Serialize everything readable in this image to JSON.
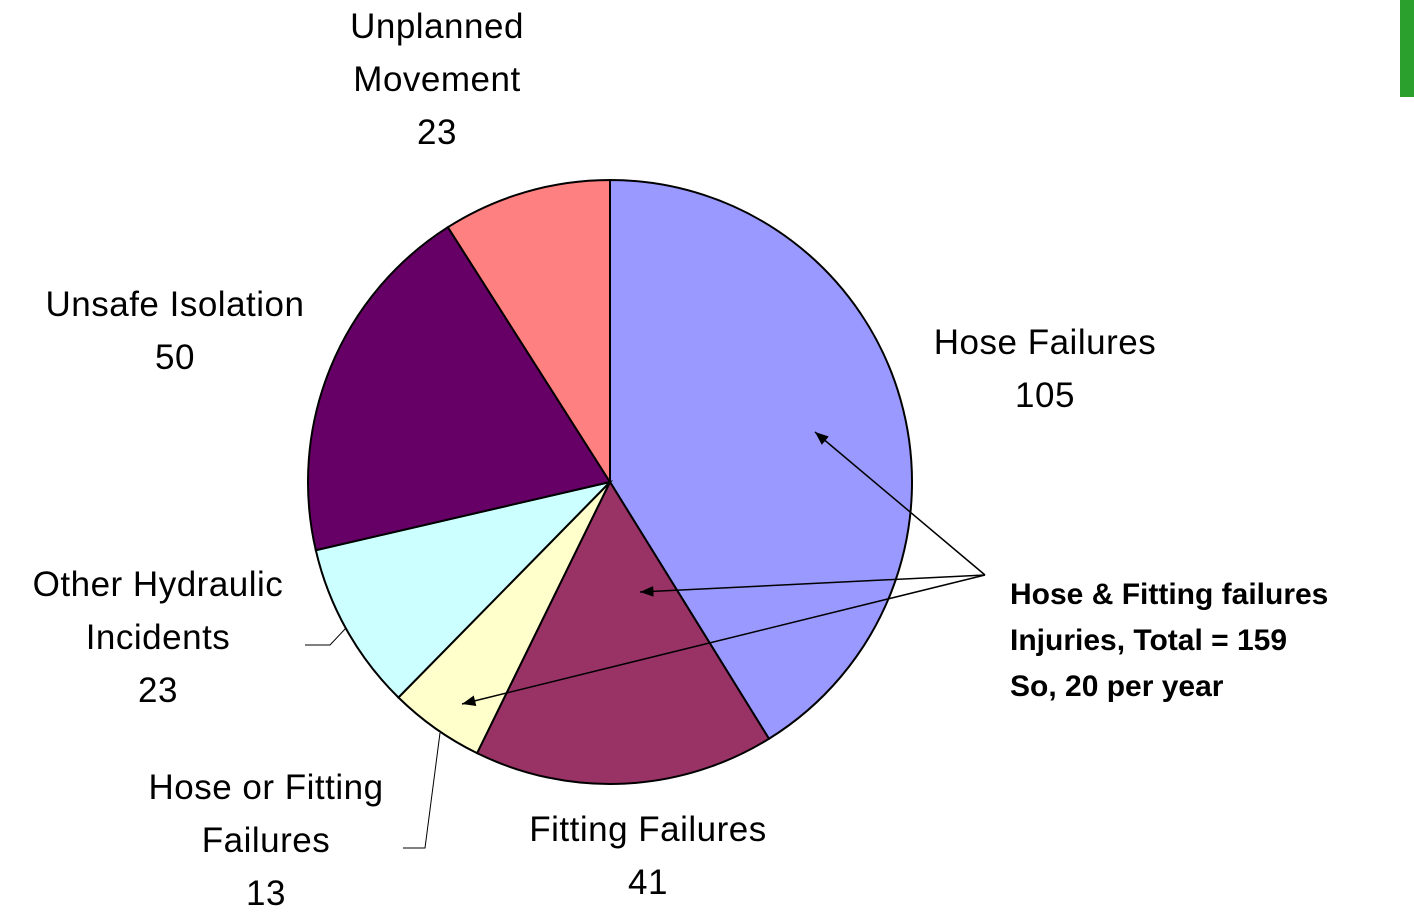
{
  "chart_data": {
    "type": "pie",
    "categories": [
      "Hose Failures",
      "Fitting Failures",
      "Hose or Fitting Failures",
      "Other Hydraulic Incidents",
      "Unsafe Isolation",
      "Unplanned Movement"
    ],
    "values": [
      105,
      41,
      13,
      23,
      50,
      23
    ],
    "colors": [
      "#9999ff",
      "#993366",
      "#ffffcc",
      "#ccffff",
      "#660066",
      "#ff8080"
    ],
    "annotation": [
      "Hose & Fitting failures",
      "Injuries, Total = 159",
      "So, 20 per year"
    ]
  }
}
